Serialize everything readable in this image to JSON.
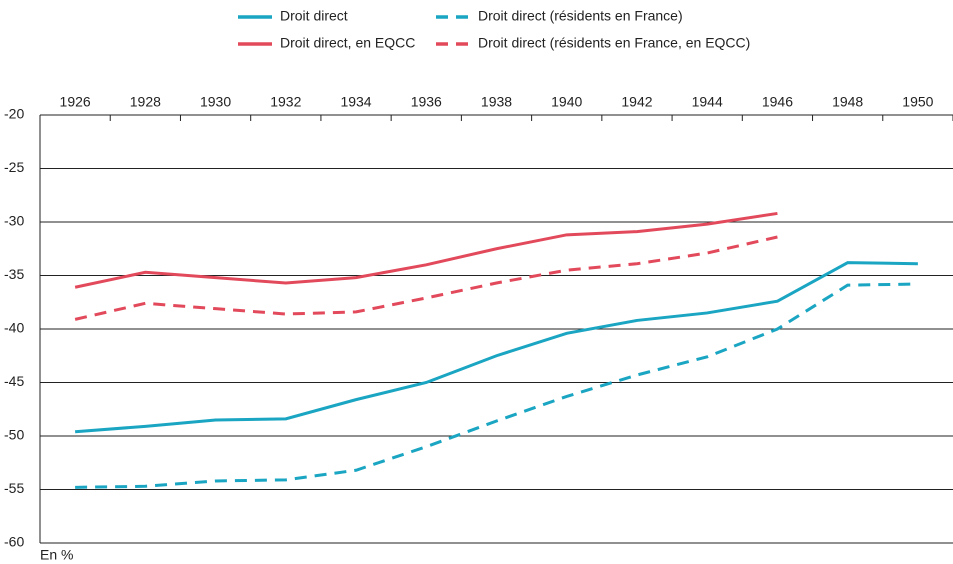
{
  "chart_data": {
    "type": "line",
    "x": [
      1926,
      1928,
      1930,
      1932,
      1934,
      1936,
      1938,
      1940,
      1942,
      1944,
      1946,
      1948,
      1950
    ],
    "xlim": [
      1925,
      1951
    ],
    "xticks": [
      1926,
      1928,
      1930,
      1932,
      1934,
      1936,
      1938,
      1940,
      1942,
      1944,
      1946,
      1948,
      1950
    ],
    "ylim": [
      -60,
      -20
    ],
    "yticks": [
      -20,
      -25,
      -30,
      -35,
      -40,
      -45,
      -50,
      -55,
      -60
    ],
    "y_unit": "En %",
    "grid": true,
    "series": [
      {
        "name": "Droit direct",
        "color": "#1aa5c2",
        "dashed": false,
        "values": [
          -49.6,
          -49.1,
          -48.5,
          -48.4,
          -46.6,
          -45.0,
          -42.5,
          -40.4,
          -39.2,
          -38.5,
          -37.4,
          -33.8,
          -33.9
        ]
      },
      {
        "name": "Droit direct (résidents en France)",
        "color": "#1aa5c2",
        "dashed": true,
        "values": [
          -54.8,
          -54.7,
          -54.2,
          -54.1,
          -53.2,
          -51.0,
          -48.6,
          -46.3,
          -44.3,
          -42.6,
          -40.0,
          -35.9,
          -35.8
        ]
      },
      {
        "name": "Droit direct, en EQCC",
        "color": "#e24a5c",
        "dashed": false,
        "values": [
          -36.1,
          -34.7,
          -35.2,
          -35.7,
          -35.2,
          -34.0,
          -32.5,
          -31.2,
          -30.9,
          -30.2,
          -29.2,
          null,
          null
        ]
      },
      {
        "name": "Droit direct (résidents en France, en EQCC)",
        "color": "#e24a5c",
        "dashed": true,
        "values": [
          -39.1,
          -37.6,
          -38.1,
          -38.6,
          -38.4,
          -37.1,
          -35.7,
          -34.5,
          -33.9,
          -32.9,
          -31.4,
          null,
          null
        ]
      }
    ]
  }
}
